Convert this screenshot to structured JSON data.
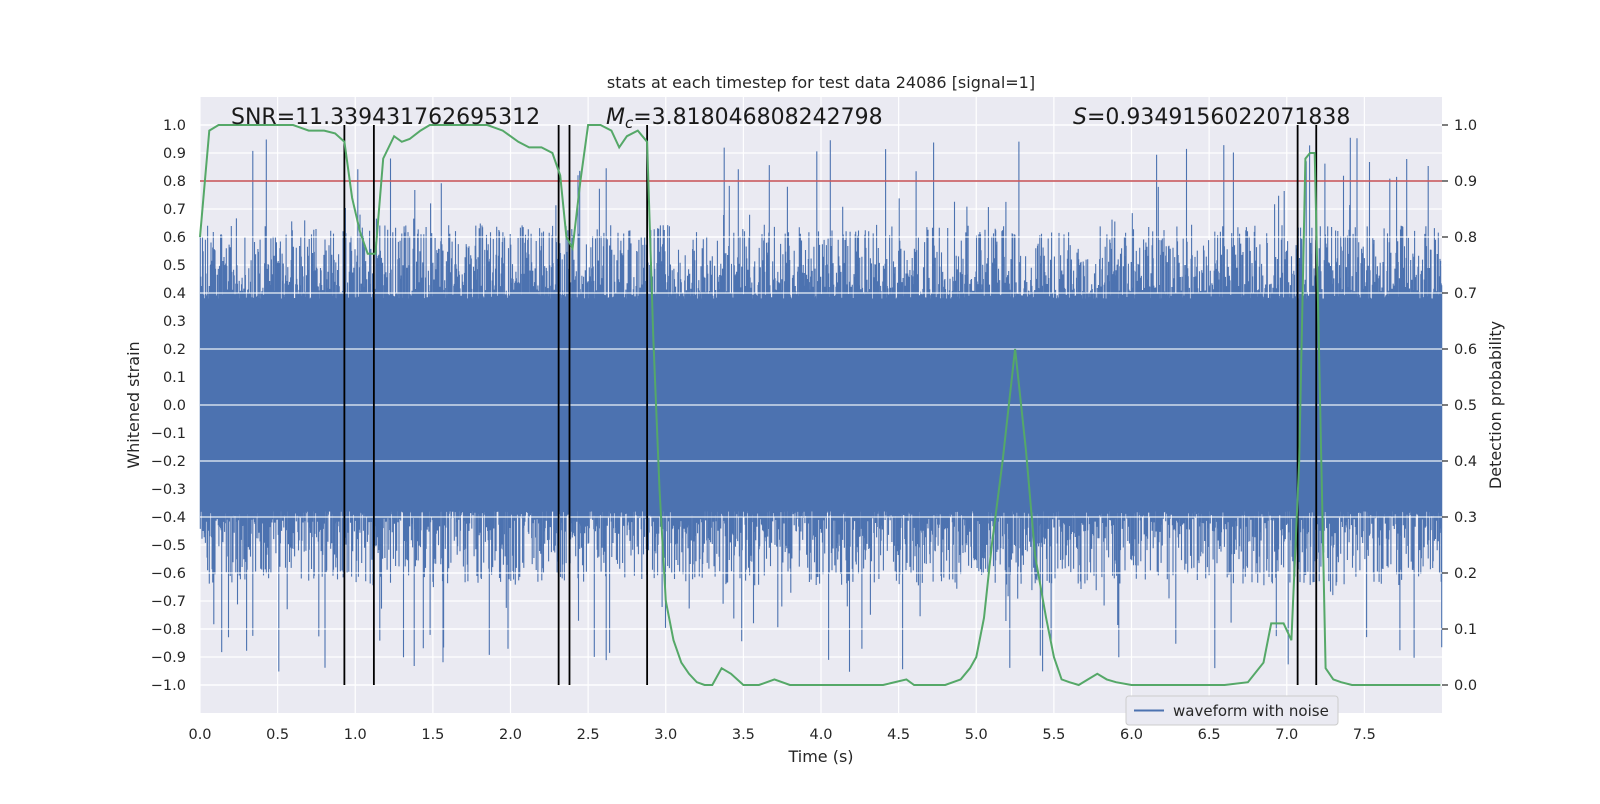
{
  "chart_data": {
    "type": "line",
    "title": "stats at each timestep for test data 24086 [signal=1]",
    "xlabel": "Time (s)",
    "ylabel_left": "Whitened strain",
    "ylabel_right": "Detection probability",
    "xlim": [
      0,
      8
    ],
    "ylim_left": [
      -1.1,
      1.1
    ],
    "ylim_right": [
      -0.05,
      1.05
    ],
    "x_ticks": [
      "0.0",
      "0.5",
      "1.0",
      "1.5",
      "2.0",
      "2.5",
      "3.0",
      "3.5",
      "4.0",
      "4.5",
      "5.0",
      "5.5",
      "6.0",
      "6.5",
      "7.0",
      "7.5"
    ],
    "x_tick_values": [
      0,
      0.5,
      1,
      1.5,
      2,
      2.5,
      3,
      3.5,
      4,
      4.5,
      5,
      5.5,
      6,
      6.5,
      7,
      7.5
    ],
    "y_ticks_left": [
      "1.0",
      "0.9",
      "0.8",
      "0.7",
      "0.6",
      "0.5",
      "0.4",
      "0.3",
      "0.2",
      "0.1",
      "0.0",
      "−0.1",
      "−0.2",
      "−0.3",
      "−0.4",
      "−0.5",
      "−0.6",
      "−0.7",
      "−0.8",
      "−0.9",
      "−1.0"
    ],
    "y_tick_values_left": [
      1.0,
      0.9,
      0.8,
      0.7,
      0.6,
      0.5,
      0.4,
      0.3,
      0.2,
      0.1,
      0.0,
      -0.1,
      -0.2,
      -0.3,
      -0.4,
      -0.5,
      -0.6,
      -0.7,
      -0.8,
      -0.9,
      -1.0
    ],
    "y_ticks_right": [
      "1.0",
      "0.9",
      "0.8",
      "0.7",
      "0.6",
      "0.5",
      "0.4",
      "0.3",
      "0.2",
      "0.1",
      "0.0"
    ],
    "y_tick_values_right": [
      1.0,
      0.9,
      0.8,
      0.7,
      0.6,
      0.5,
      0.4,
      0.3,
      0.2,
      0.1,
      0.0
    ],
    "threshold": {
      "axis": "right",
      "value": 0.9,
      "color": "#c44e52"
    },
    "annotations": {
      "snr": "SNR=11.339431762695312",
      "mc_symbol": "M",
      "mc_subscript": "c",
      "mc_value": "=3.818046808242798",
      "s_symbol": "S",
      "s_value": "=0.9349156022071838"
    },
    "vertical_lines": [
      0.93,
      1.12,
      2.31,
      2.38,
      2.88,
      7.07,
      7.19
    ],
    "legend": {
      "label": "waveform with noise",
      "location": "lower-right"
    },
    "series": [
      {
        "name": "waveform with noise",
        "axis": "left",
        "color": "#4c72b0",
        "envelope": {
          "base_amplitude": 0.38,
          "typical_peak": 0.62,
          "max_peak": 1.0,
          "min_trough": -1.0
        }
      },
      {
        "name": "detection probability",
        "axis": "right",
        "color": "#55a868",
        "x": [
          0.0,
          0.06,
          0.12,
          0.2,
          0.3,
          0.4,
          0.5,
          0.6,
          0.7,
          0.8,
          0.87,
          0.93,
          0.98,
          1.03,
          1.08,
          1.13,
          1.18,
          1.25,
          1.3,
          1.35,
          1.42,
          1.48,
          1.55,
          1.65,
          1.75,
          1.85,
          1.95,
          2.05,
          2.12,
          2.2,
          2.27,
          2.32,
          2.36,
          2.4,
          2.45,
          2.5,
          2.58,
          2.65,
          2.7,
          2.75,
          2.82,
          2.88,
          2.92,
          2.96,
          3.0,
          3.05,
          3.1,
          3.15,
          3.2,
          3.25,
          3.3,
          3.36,
          3.42,
          3.5,
          3.6,
          3.7,
          3.8,
          3.9,
          4.0,
          4.2,
          4.4,
          4.55,
          4.6,
          4.7,
          4.8,
          4.9,
          4.96,
          5.0,
          5.05,
          5.1,
          5.17,
          5.25,
          5.32,
          5.38,
          5.45,
          5.5,
          5.55,
          5.6,
          5.66,
          5.72,
          5.78,
          5.84,
          5.9,
          6.0,
          6.2,
          6.4,
          6.6,
          6.75,
          6.85,
          6.9,
          6.98,
          7.03,
          7.08,
          7.12,
          7.15,
          7.18,
          7.2,
          7.25,
          7.3,
          7.35,
          7.42,
          7.5,
          7.7,
          7.99
        ],
        "values": [
          0.8,
          0.99,
          1.0,
          1.0,
          1.0,
          1.0,
          1.0,
          1.0,
          0.99,
          0.99,
          0.985,
          0.97,
          0.87,
          0.81,
          0.77,
          0.77,
          0.94,
          0.98,
          0.97,
          0.975,
          0.99,
          1.0,
          1.0,
          1.0,
          1.0,
          1.0,
          0.99,
          0.97,
          0.96,
          0.96,
          0.95,
          0.91,
          0.8,
          0.78,
          0.9,
          1.0,
          1.0,
          0.99,
          0.96,
          0.98,
          0.99,
          0.97,
          0.62,
          0.35,
          0.15,
          0.08,
          0.04,
          0.02,
          0.005,
          0.0,
          0.0,
          0.03,
          0.02,
          0.0,
          0.0,
          0.01,
          0.0,
          0.0,
          0.0,
          0.0,
          0.0,
          0.01,
          0.0,
          0.0,
          0.0,
          0.01,
          0.03,
          0.05,
          0.12,
          0.25,
          0.4,
          0.6,
          0.42,
          0.23,
          0.12,
          0.05,
          0.01,
          0.005,
          0.0,
          0.01,
          0.02,
          0.01,
          0.005,
          0.0,
          0.0,
          0.0,
          0.0,
          0.005,
          0.04,
          0.11,
          0.11,
          0.08,
          0.4,
          0.94,
          0.95,
          0.95,
          0.7,
          0.03,
          0.01,
          0.005,
          0.0,
          0.0,
          0.0,
          0.0
        ]
      }
    ]
  }
}
